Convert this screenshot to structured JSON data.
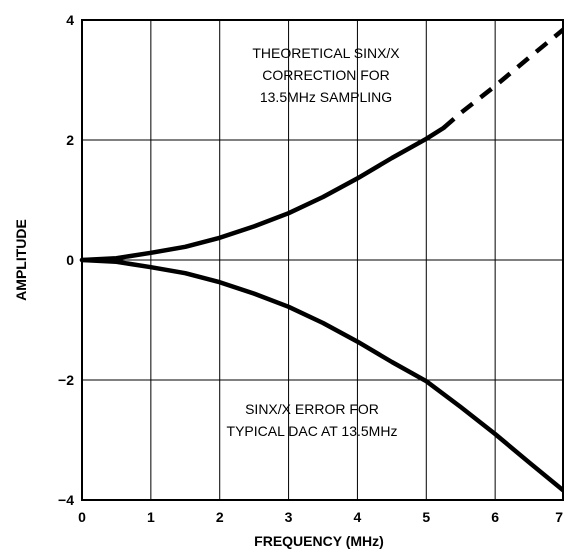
{
  "chart_data": {
    "type": "line",
    "xlabel": "FREQUENCY (MHz)",
    "ylabel": "AMPLITUDE",
    "xlim": [
      0,
      7
    ],
    "ylim": [
      -4,
      4
    ],
    "x_ticks": [
      "0",
      "1",
      "2",
      "3",
      "4",
      "5",
      "6",
      "7"
    ],
    "y_ticks": [
      "4",
      "2",
      "0",
      "−2",
      "−4"
    ],
    "grid": true,
    "series": [
      {
        "name": "THEORETICAL SINX/X CORRECTION FOR 13.5MHz SAMPLING",
        "style": "solid",
        "x": [
          0,
          0.5,
          1,
          1.5,
          2,
          2.5,
          3,
          3.5,
          4,
          4.5,
          5,
          5.25
        ],
        "y": [
          0,
          0.03,
          0.12,
          0.22,
          0.37,
          0.56,
          0.78,
          1.05,
          1.36,
          1.7,
          2.02,
          2.2
        ]
      },
      {
        "name": "THEORETICAL SINX/X CORRECTION FOR 13.5MHz SAMPLING",
        "style": "dashed",
        "x": [
          5.25,
          5.5,
          6,
          6.5,
          7
        ],
        "y": [
          2.2,
          2.45,
          2.9,
          3.38,
          3.85
        ]
      },
      {
        "name": "SINX/X ERROR FOR TYPICAL DAC AT 13.5MHz",
        "style": "solid",
        "x": [
          0,
          0.5,
          1,
          1.5,
          2,
          2.5,
          3,
          3.5,
          4,
          4.5,
          5,
          5.5,
          6,
          6.5,
          7
        ],
        "y": [
          0,
          -0.03,
          -0.12,
          -0.22,
          -0.37,
          -0.56,
          -0.78,
          -1.05,
          -1.36,
          -1.7,
          -2.02,
          -2.45,
          -2.9,
          -3.38,
          -3.85
        ]
      }
    ],
    "annotations": [
      {
        "lines": [
          "THEORETICAL SINX/X",
          "CORRECTION FOR",
          "13.5MHz SAMPLING"
        ]
      },
      {
        "lines": [
          "SINX/X ERROR FOR",
          "TYPICAL DAC AT 13.5MHz"
        ]
      }
    ]
  }
}
